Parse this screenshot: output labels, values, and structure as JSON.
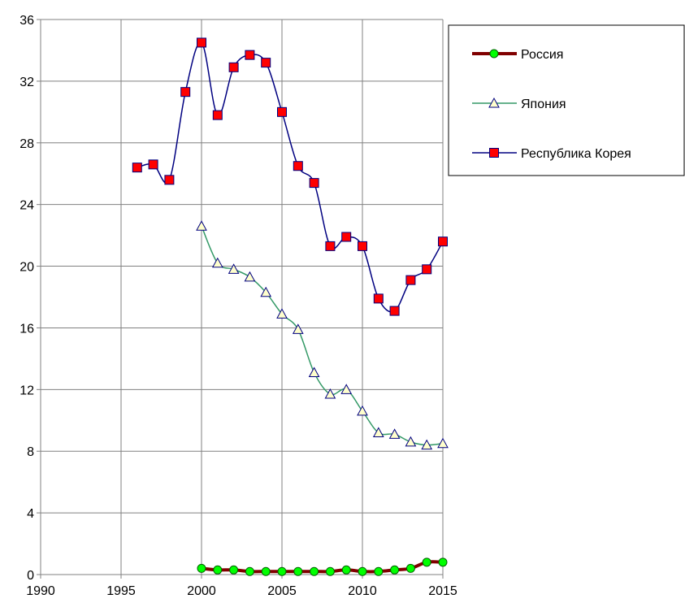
{
  "chart_data": {
    "type": "line",
    "title": "",
    "xlabel": "",
    "ylabel": "",
    "xlim": [
      1990,
      2015
    ],
    "ylim": [
      0,
      36
    ],
    "x_ticks": [
      1990,
      1995,
      2000,
      2005,
      2010,
      2015
    ],
    "y_ticks": [
      0,
      4,
      8,
      12,
      16,
      20,
      24,
      28,
      32,
      36
    ],
    "grid": true,
    "legend_position": "top-right",
    "series": [
      {
        "name": "Россия",
        "color": "#800000",
        "marker": "circle",
        "marker_color": "#00ff00",
        "x": [
          2000,
          2001,
          2002,
          2003,
          2004,
          2005,
          2006,
          2007,
          2008,
          2009,
          2010,
          2011,
          2012,
          2013,
          2014,
          2015
        ],
        "y": [
          0.4,
          0.3,
          0.3,
          0.2,
          0.2,
          0.2,
          0.2,
          0.2,
          0.2,
          0.3,
          0.2,
          0.2,
          0.3,
          0.4,
          0.8,
          0.8
        ]
      },
      {
        "name": "Япония",
        "color": "#339966",
        "marker": "triangle",
        "marker_color": "#ffffcc",
        "x": [
          2000,
          2001,
          2002,
          2003,
          2004,
          2005,
          2006,
          2007,
          2008,
          2009,
          2010,
          2011,
          2012,
          2013,
          2014,
          2015
        ],
        "y": [
          22.6,
          20.2,
          19.8,
          19.3,
          18.3,
          16.9,
          15.9,
          13.1,
          11.7,
          12.0,
          10.6,
          9.2,
          9.1,
          8.6,
          8.4,
          8.5
        ]
      },
      {
        "name": "Республика Корея",
        "color": "#000080",
        "marker": "square",
        "marker_color": "#ff0000",
        "x": [
          1996,
          1997,
          1998,
          1999,
          2000,
          2001,
          2002,
          2003,
          2004,
          2005,
          2006,
          2007,
          2008,
          2009,
          2010,
          2011,
          2012,
          2013,
          2014,
          2015
        ],
        "y": [
          26.4,
          26.6,
          25.6,
          31.3,
          34.5,
          29.8,
          32.9,
          33.7,
          33.2,
          30.0,
          26.5,
          25.4,
          21.3,
          21.9,
          21.3,
          17.9,
          17.1,
          19.1,
          19.8,
          21.6
        ]
      }
    ]
  }
}
